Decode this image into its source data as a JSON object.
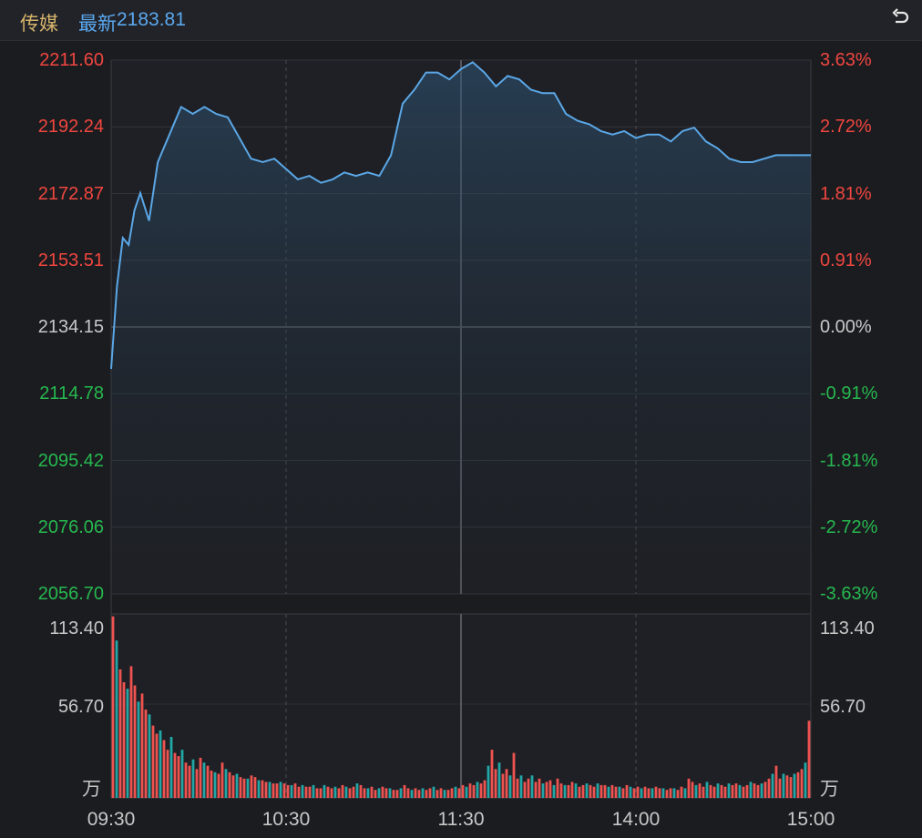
{
  "header": {
    "name": "传媒",
    "latest_label": "最新",
    "latest_value": "2183.81"
  },
  "colors": {
    "up": "#f0463f",
    "down": "#26b94f",
    "flat": "#c8c8c8",
    "line": "#5ba7e6",
    "vol_up": "#ef5350",
    "vol_down": "#22a6a6"
  },
  "icons": {
    "back": "undo-arrow-icon"
  },
  "chart_data": [
    {
      "type": "line",
      "title": "",
      "reference_price": 2134.15,
      "ylim": [
        2056.7,
        2211.6
      ],
      "y_ticks_left": [
        "2211.60",
        "2192.24",
        "2172.87",
        "2153.51",
        "2134.15",
        "2114.78",
        "2095.42",
        "2076.06",
        "2056.70"
      ],
      "y_ticks_right": [
        "3.63%",
        "2.72%",
        "1.81%",
        "0.91%",
        "0.00%",
        "-0.91%",
        "-1.81%",
        "-2.72%",
        "-3.63%"
      ],
      "x_ticks": [
        "09:30",
        "10:30",
        "11:30",
        "14:00",
        "15:00"
      ],
      "x_minutes": [
        0,
        2,
        4,
        6,
        8,
        10,
        13,
        16,
        20,
        24,
        28,
        32,
        36,
        40,
        44,
        48,
        52,
        56,
        60,
        64,
        68,
        72,
        76,
        80,
        84,
        88,
        92,
        96,
        100,
        104,
        108,
        112,
        116,
        120,
        124,
        128,
        132,
        136,
        140,
        144,
        148,
        152,
        156,
        160,
        164,
        168,
        172,
        176,
        180,
        184,
        188,
        192,
        196,
        200,
        204,
        208,
        212,
        216,
        220,
        224,
        228,
        232,
        236,
        240
      ],
      "values": [
        2122,
        2146,
        2160,
        2158,
        2168,
        2173,
        2165,
        2182,
        2190,
        2198,
        2196,
        2198,
        2196,
        2195,
        2189,
        2183,
        2182,
        2183,
        2180,
        2177,
        2178,
        2176,
        2177,
        2179,
        2178,
        2179,
        2178,
        2184,
        2199,
        2203,
        2208,
        2208,
        2206,
        2209,
        2211,
        2208,
        2204,
        2207,
        2206,
        2203,
        2202,
        2202,
        2196,
        2194,
        2193,
        2191,
        2190,
        2191,
        2189,
        2190,
        2190,
        2188,
        2191,
        2192,
        2188,
        2186,
        2183,
        2182,
        2182,
        2183,
        2184,
        2184,
        2184,
        2184
      ]
    },
    {
      "type": "bar",
      "title": "",
      "unit": "万",
      "ylim": [
        0,
        113.4
      ],
      "y_ticks": [
        "113.40",
        "56.70"
      ],
      "x_ticks": [
        "09:30",
        "10:30",
        "11:30",
        "14:00",
        "15:00"
      ],
      "values": [
        113,
        98,
        80,
        72,
        68,
        82,
        70,
        60,
        65,
        55,
        52,
        45,
        40,
        42,
        36,
        30,
        38,
        28,
        26,
        30,
        22,
        20,
        24,
        18,
        25,
        22,
        20,
        17,
        16,
        15,
        22,
        18,
        16,
        14,
        15,
        13,
        12,
        12,
        14,
        13,
        11,
        11,
        10,
        10,
        9,
        9,
        10,
        9,
        8,
        8,
        9,
        7,
        8,
        7,
        7,
        8,
        6,
        6,
        8,
        7,
        6,
        7,
        6,
        8,
        7,
        6,
        7,
        9,
        8,
        6,
        6,
        7,
        5,
        6,
        7,
        6,
        6,
        5,
        5,
        6,
        8,
        6,
        5,
        6,
        5,
        6,
        5,
        6,
        7,
        5,
        6,
        5,
        5,
        6,
        7,
        6,
        8,
        7,
        9,
        8,
        10,
        9,
        11,
        20,
        30,
        18,
        22,
        15,
        18,
        14,
        28,
        12,
        14,
        10,
        12,
        14,
        10,
        12,
        9,
        10,
        11,
        8,
        12,
        9,
        8,
        8,
        10,
        9,
        7,
        8,
        9,
        8,
        7,
        9,
        8,
        8,
        7,
        8,
        7,
        7,
        6,
        8,
        7,
        6,
        7,
        6,
        7,
        6,
        6,
        7,
        6,
        6,
        5,
        6,
        6,
        5,
        7,
        6,
        12,
        10,
        8,
        9,
        7,
        10,
        8,
        7,
        9,
        8,
        7,
        9,
        8,
        9,
        8,
        7,
        8,
        10,
        9,
        8,
        9,
        10,
        12,
        15,
        20,
        12,
        15,
        14,
        13,
        15,
        16,
        18,
        22,
        48
      ]
    }
  ]
}
